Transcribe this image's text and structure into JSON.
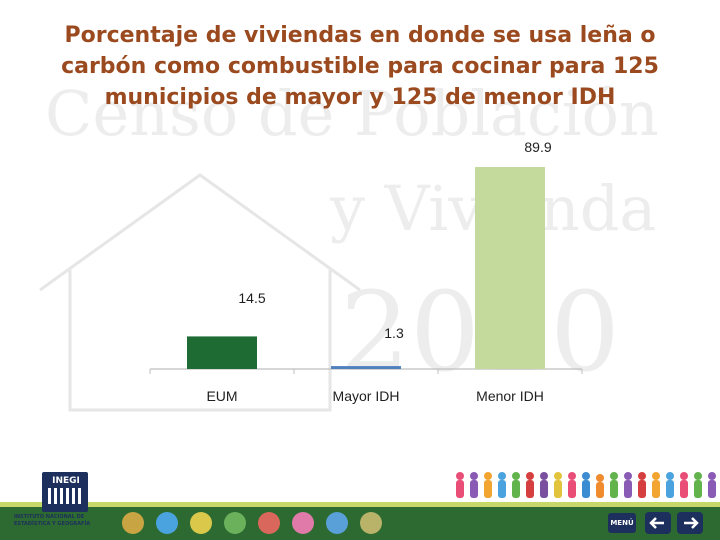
{
  "chart_data": {
    "type": "bar",
    "title": "Porcentaje de viviendas en donde se usa leña o carbón como combustible para cocinar para 125 municipios de mayor y 125 de menor IDH",
    "categories": [
      "EUM",
      "Mayor IDH",
      "Menor IDH"
    ],
    "values": [
      14.5,
      1.3,
      89.9
    ],
    "data_labels": [
      "14.5",
      "1.3",
      "89.9"
    ],
    "colors": [
      "#1e6b34",
      "#4f81bd",
      "#c4d99c"
    ],
    "ylim": [
      0,
      100
    ],
    "grid": false,
    "legend": "none"
  },
  "branding": {
    "logo_word": "INEGI",
    "logo_subtitle": "INSTITUTO NACIONAL DE ESTADÍSTICA Y GEOGRAFÍA",
    "watermark_lines": [
      "Censo de Población",
      "y Vivienda",
      "2010"
    ]
  },
  "footer": {
    "menu_label": "MENÚ",
    "back_icon": "arrow-left-icon",
    "forward_icon": "arrow-right-icon",
    "theme_icons": [
      "people-icon",
      "education-icon",
      "work-icon",
      "health-icon",
      "house-icon",
      "migration-icon",
      "map-icon",
      "document-icon"
    ]
  },
  "colors": {
    "title": "#9a4a1e",
    "footer_bar": "#2d6a31",
    "accent": "#c7d86a"
  }
}
